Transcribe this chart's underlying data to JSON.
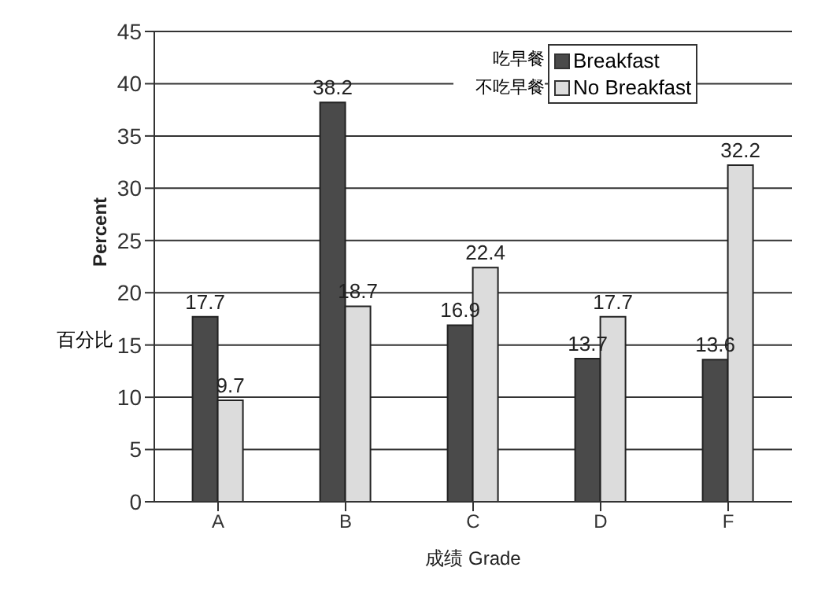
{
  "chart_data": {
    "type": "bar",
    "xlabel": "成绩  Grade",
    "ylabel": "Percent",
    "categories": [
      "A",
      "B",
      "C",
      "D",
      "F"
    ],
    "series": [
      {
        "name": "Breakfast",
        "color": "#4a4a4a",
        "values": [
          17.7,
          38.2,
          16.9,
          13.7,
          13.6
        ]
      },
      {
        "name": "No Breakfast",
        "color": "#dcdcdc",
        "values": [
          9.7,
          18.7,
          22.4,
          17.7,
          32.2
        ]
      }
    ],
    "ylim": [
      0,
      45
    ],
    "yticks": [
      0,
      5,
      10,
      15,
      20,
      25,
      30,
      35,
      40,
      45
    ],
    "grid": "y",
    "legend": "top right",
    "data_labels": true,
    "annotations": [
      "吃早餐",
      "不吃早餐",
      "百分比"
    ]
  }
}
